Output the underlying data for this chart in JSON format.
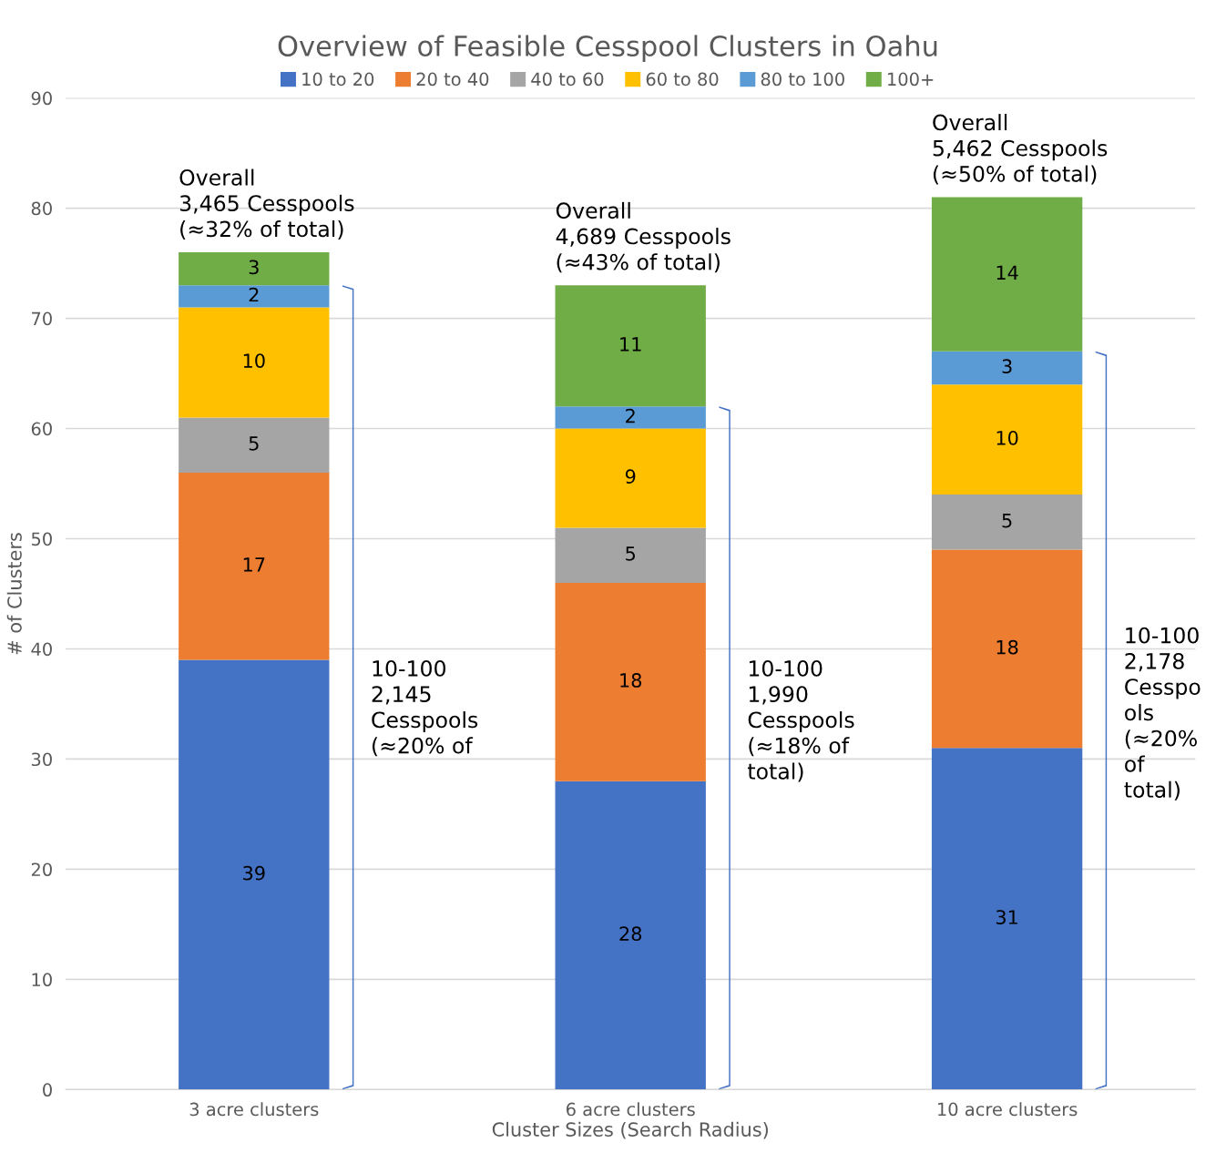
{
  "chart_data": {
    "type": "bar",
    "stacked": true,
    "title": "Overview of Feasible Cesspool Clusters in Oahu",
    "xlabel": "Cluster Sizes (Search Radius)",
    "ylabel": "# of Clusters",
    "categories": [
      "3 acre clusters",
      "6 acre clusters",
      "10 acre clusters"
    ],
    "series": [
      {
        "name": "10 to 20",
        "color": "#4472c4",
        "values": [
          39,
          28,
          31
        ]
      },
      {
        "name": "20 to 40",
        "color": "#ed7d31",
        "values": [
          17,
          18,
          18
        ]
      },
      {
        "name": "40 to 60",
        "color": "#a5a5a5",
        "values": [
          5,
          5,
          5
        ]
      },
      {
        "name": "60 to 80",
        "color": "#ffc000",
        "values": [
          10,
          9,
          10
        ]
      },
      {
        "name": "80 to 100",
        "color": "#5b9bd5",
        "values": [
          2,
          2,
          3
        ]
      },
      {
        "name": "100+",
        "color": "#70ad47",
        "values": [
          3,
          11,
          14
        ]
      }
    ],
    "ylim": [
      0,
      90
    ],
    "yticks": [
      0,
      10,
      20,
      30,
      40,
      50,
      60,
      70,
      80,
      90
    ],
    "grid": "y",
    "legend": "top",
    "data_labels": true,
    "annotations": [
      "Overall\n3,465 Cesspools\n(≈32% of total)",
      "Overall\n4,689 Cesspools\n(≈43% of total)",
      "Overall\n5,462 Cesspools\n(≈50% of total)",
      "10-100\n2,145\nCesspools\n(≈20% of",
      "10-100\n1,990\nCesspools\n(≈18% of\ntotal)",
      "10-100\n2,178\nCesspo\nols\n(≈20%\nof\ntotal)"
    ]
  }
}
